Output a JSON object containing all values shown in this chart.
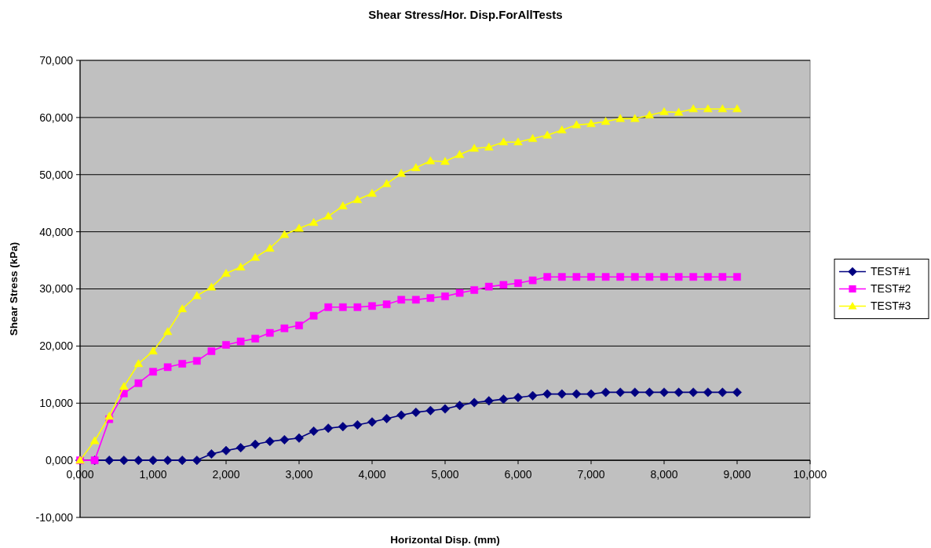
{
  "chart_data": {
    "type": "line",
    "title": "Shear Stress/Hor. Disp.ForAllTests",
    "xlabel": "Horizontal Disp. (mm)",
    "ylabel": "Shear Stress (kPa)",
    "x": [
      0,
      0.2,
      0.4,
      0.6,
      0.8,
      1.0,
      1.2,
      1.4,
      1.6,
      1.8,
      2.0,
      2.2,
      2.4,
      2.6,
      2.8,
      3.0,
      3.2,
      3.4,
      3.6,
      3.8,
      4.0,
      4.2,
      4.4,
      4.6,
      4.8,
      5.0,
      5.2,
      5.4,
      5.6,
      5.8,
      6.0,
      6.2,
      6.4,
      6.6,
      6.8,
      7.0,
      7.2,
      7.4,
      7.6,
      7.8,
      8.0,
      8.2,
      8.4,
      8.6,
      8.8,
      9.0
    ],
    "series": [
      {
        "name": "TEST#1",
        "color": "#000080",
        "marker": "diamond",
        "values": [
          0,
          0,
          0,
          0,
          0,
          0,
          0,
          0,
          0,
          1.1,
          1.7,
          2.2,
          2.8,
          3.3,
          3.6,
          3.9,
          5.1,
          5.6,
          5.9,
          6.2,
          6.7,
          7.3,
          7.9,
          8.4,
          8.7,
          9.0,
          9.6,
          10.1,
          10.4,
          10.7,
          11.0,
          11.3,
          11.6,
          11.6,
          11.6,
          11.6,
          11.9,
          11.9,
          11.9,
          11.9,
          11.9,
          11.9,
          11.9,
          11.9,
          11.9,
          11.9
        ]
      },
      {
        "name": "TEST#2",
        "color": "#ff00ff",
        "marker": "square",
        "values": [
          0,
          0,
          7.2,
          11.7,
          13.5,
          15.5,
          16.3,
          16.9,
          17.4,
          19.1,
          20.2,
          20.8,
          21.3,
          22.3,
          23.1,
          23.6,
          25.3,
          26.8,
          26.8,
          26.8,
          27.0,
          27.3,
          28.1,
          28.1,
          28.4,
          28.7,
          29.3,
          29.8,
          30.4,
          30.7,
          31.0,
          31.5,
          32.1,
          32.1,
          32.1,
          32.1,
          32.1,
          32.1,
          32.1,
          32.1,
          32.1,
          32.1,
          32.1,
          32.1,
          32.1,
          32.1
        ]
      },
      {
        "name": "TEST#3",
        "color": "#ffff00",
        "marker": "triangle",
        "values": [
          0,
          3.4,
          7.7,
          12.9,
          16.9,
          19.1,
          22.5,
          26.5,
          28.8,
          30.3,
          32.7,
          33.8,
          35.5,
          37.1,
          39.5,
          40.6,
          41.6,
          42.7,
          44.5,
          45.6,
          46.7,
          48.4,
          50.2,
          51.2,
          52.4,
          52.3,
          53.5,
          54.6,
          54.8,
          55.7,
          55.7,
          56.3,
          56.9,
          57.8,
          58.7,
          58.9,
          59.3,
          59.8,
          59.8,
          60.4,
          61.0,
          60.9,
          61.5,
          61.5,
          61.5,
          61.5
        ]
      }
    ],
    "xlim": [
      0,
      10
    ],
    "xticks": [
      {
        "value": 0,
        "label": "0,000"
      },
      {
        "value": 1,
        "label": "1,000"
      },
      {
        "value": 2,
        "label": "2,000"
      },
      {
        "value": 3,
        "label": "3,000"
      },
      {
        "value": 4,
        "label": "4,000"
      },
      {
        "value": 5,
        "label": "5,000"
      },
      {
        "value": 6,
        "label": "6,000"
      },
      {
        "value": 7,
        "label": "7,000"
      },
      {
        "value": 8,
        "label": "8,000"
      },
      {
        "value": 9,
        "label": "9,000"
      },
      {
        "value": 10,
        "label": "10,000"
      }
    ],
    "ylim": [
      -10,
      70
    ],
    "yticks": [
      {
        "value": -10,
        "label": "-10,000"
      },
      {
        "value": 0,
        "label": "0,000"
      },
      {
        "value": 10,
        "label": "10,000"
      },
      {
        "value": 20,
        "label": "20,000"
      },
      {
        "value": 30,
        "label": "30,000"
      },
      {
        "value": 40,
        "label": "40,000"
      },
      {
        "value": 50,
        "label": "50,000"
      },
      {
        "value": 60,
        "label": "60,000"
      },
      {
        "value": 70,
        "label": "70,000"
      }
    ],
    "grid": "y",
    "legend": "right",
    "line_style": "solid"
  }
}
